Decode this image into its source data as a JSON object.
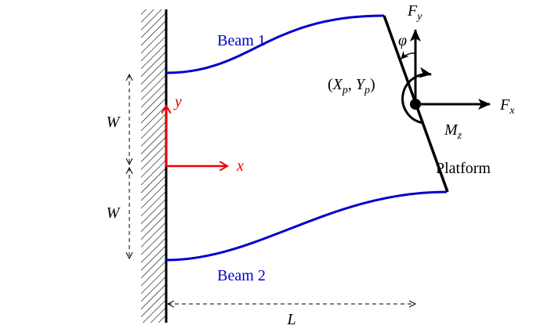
{
  "labels": {
    "beam1": "Beam 1",
    "beam2": "Beam 2",
    "platform": "Platform",
    "force_y": {
      "symbol": "F",
      "subscript": "y"
    },
    "force_x": {
      "symbol": "F",
      "subscript": "x"
    },
    "moment": {
      "symbol": "M",
      "subscript": "z"
    },
    "angle": "φ",
    "position": {
      "open": "(",
      "x_symbol": "X",
      "x_subscript": "p",
      "separator": ", ",
      "y_symbol": "Y",
      "y_subscript": "p",
      "close": ")"
    },
    "width_top": "W",
    "width_bottom": "W",
    "length": "L",
    "axis_y": "y",
    "axis_x": "x"
  }
}
